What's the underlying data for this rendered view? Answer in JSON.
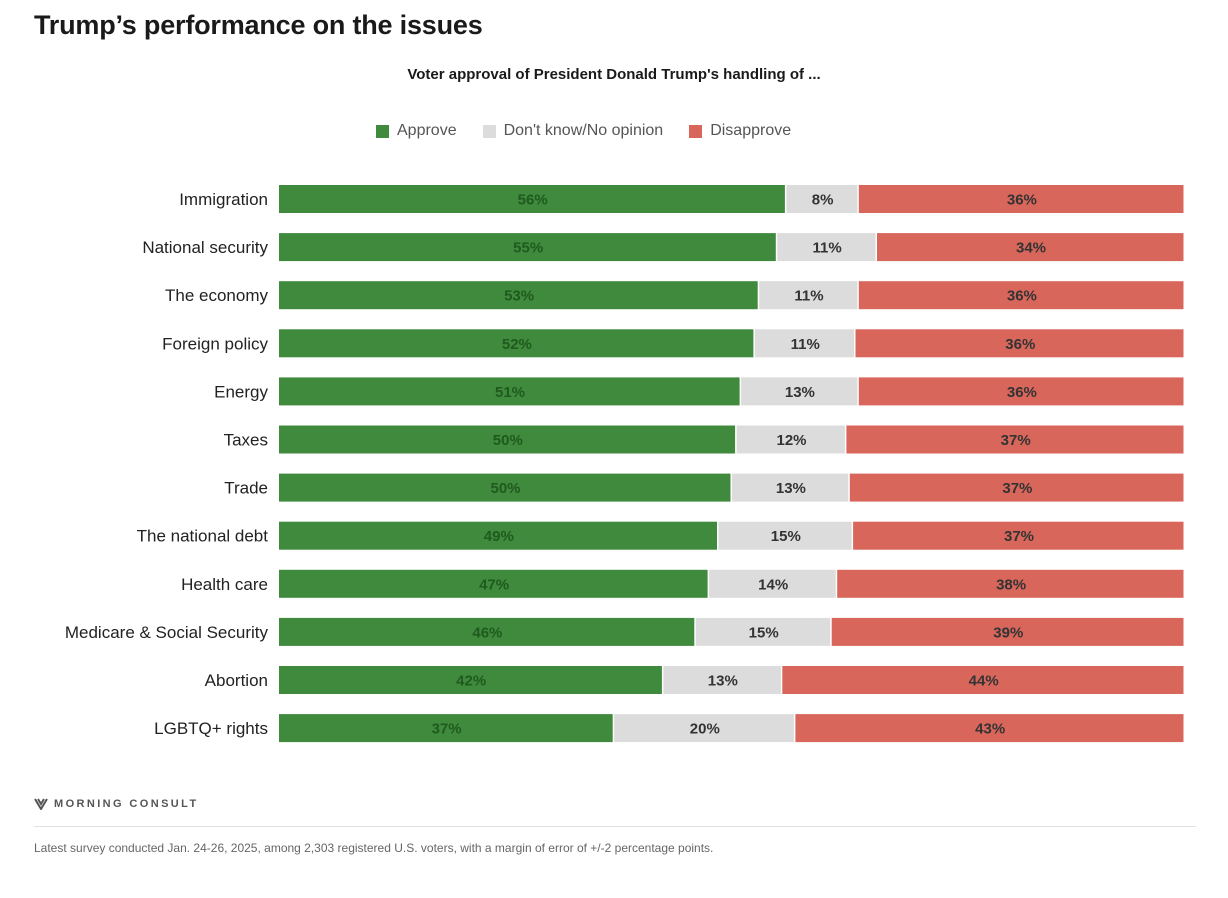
{
  "page": {
    "title": "Trump’s performance on the issues",
    "subtitle": "Voter approval of President Donald Trump's handling of ...",
    "logo_text": "MORNING CONSULT",
    "footnote": "Latest survey conducted Jan. 24-26, 2025, among 2,303 registered U.S. voters, with a margin of error of +/-2 percentage points."
  },
  "colors": {
    "approve": "#3f8a3c",
    "dont_know": "#dcdcdc",
    "disapprove": "#d9665b",
    "approve_label": "#1f5a1e",
    "neutral_label": "#333333"
  },
  "chart_data": {
    "type": "bar",
    "orientation": "horizontal",
    "stacked": true,
    "title": "Voter approval of President Donald Trump's handling of ...",
    "categories": [
      "Immigration",
      "National security",
      "The economy",
      "Foreign policy",
      "Energy",
      "Taxes",
      "Trade",
      "The national debt",
      "Health care",
      "Medicare & Social Security",
      "Abortion",
      "LGBTQ+ rights"
    ],
    "series": [
      {
        "name": "Approve",
        "values": [
          56,
          55,
          53,
          52,
          51,
          50,
          50,
          49,
          47,
          46,
          42,
          37
        ]
      },
      {
        "name": "Don't know/No opinion",
        "values": [
          8,
          11,
          11,
          11,
          13,
          12,
          13,
          15,
          14,
          15,
          13,
          20
        ]
      },
      {
        "name": "Disapprove",
        "values": [
          36,
          34,
          36,
          36,
          36,
          37,
          37,
          37,
          38,
          39,
          44,
          43
        ]
      }
    ],
    "value_suffix": "%",
    "legend_position": "top",
    "grid": false,
    "xlim": [
      0,
      100
    ]
  }
}
